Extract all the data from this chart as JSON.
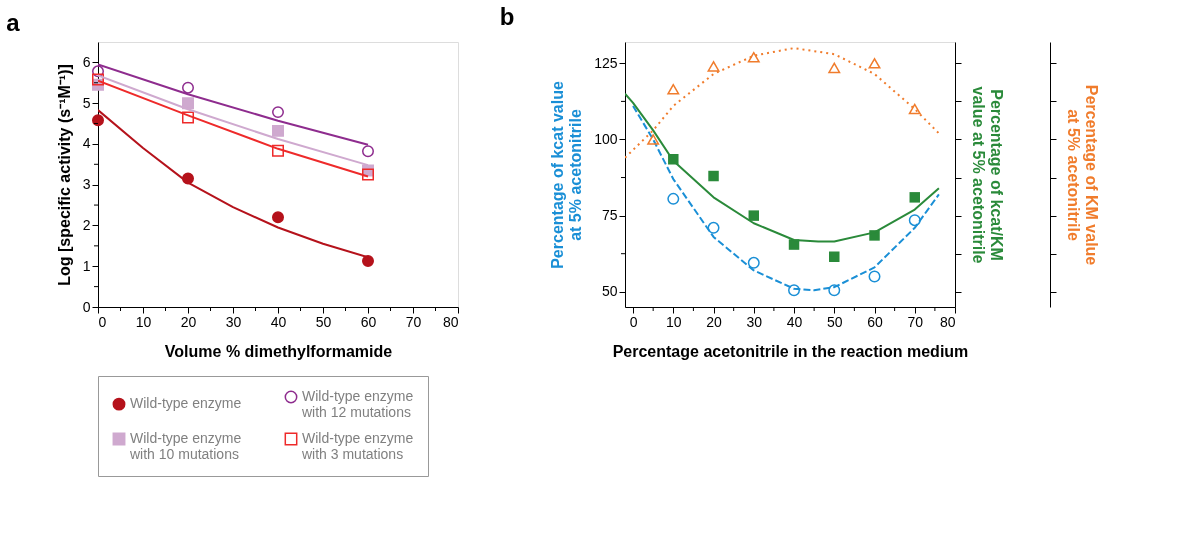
{
  "chart_data": [
    {
      "type": "scatter",
      "title": "a",
      "xlabel": "Volume % dimethylformamide",
      "ylabel": "Log [specific activity (s⁻¹M⁻¹)]",
      "xlim": [
        0,
        80
      ],
      "xticks": [
        0,
        {
          "value": 5,
          "label": null
        },
        10,
        {
          "value": 15,
          "label": null
        },
        20,
        {
          "value": 25,
          "label": null
        },
        30,
        {
          "value": 35,
          "label": null
        },
        40,
        {
          "value": 45,
          "label": null
        },
        50,
        {
          "value": 55,
          "label": null
        },
        60,
        {
          "value": 65,
          "label": null
        },
        70,
        {
          "value": 75,
          "label": null
        },
        80
      ],
      "ylim": [
        0,
        6.5
      ],
      "yticks": [
        0,
        {
          "value": 0.5,
          "label": null
        },
        1,
        {
          "value": 1.5,
          "label": null
        },
        2,
        {
          "value": 2.5,
          "label": null
        },
        3,
        {
          "value": 3.5,
          "label": null
        },
        4,
        {
          "value": 4.5,
          "label": null
        },
        5,
        {
          "value": 5.5,
          "label": null
        },
        6
      ],
      "grid": false,
      "legend": "bottom",
      "series": [
        {
          "name": "Wild-type enzyme",
          "color": "#b5121b",
          "marker": "circle",
          "x": [
            0,
            20,
            40,
            60
          ],
          "values": [
            4.58,
            3.15,
            2.2,
            1.13
          ]
        },
        {
          "name": "Wild-type enzyme with 12 mutations",
          "color": "#8e2c8e",
          "marker": "circle-open",
          "x": [
            0,
            20,
            40,
            60
          ],
          "values": [
            5.78,
            5.38,
            4.78,
            3.82
          ]
        },
        {
          "name": "Wild-type enzyme with 10 mutations",
          "color": "#cfa9cf",
          "marker": "square",
          "x": [
            0,
            20,
            40,
            60
          ],
          "values": [
            5.45,
            5.0,
            4.32,
            3.35
          ]
        },
        {
          "name": "Wild-type enzyme with 3 mutations",
          "color": "#ee2a2a",
          "marker": "square-open",
          "x": [
            0,
            20,
            40,
            60
          ],
          "values": [
            5.58,
            4.65,
            3.83,
            3.25
          ]
        },
        {
          "type": "line",
          "color": "#b5121b",
          "x": [
            0,
            10,
            20,
            30,
            40,
            50,
            60
          ],
          "values": [
            4.83,
            3.9,
            3.05,
            2.45,
            1.95,
            1.55,
            1.22
          ]
        },
        {
          "type": "line",
          "color": "#8e2c8e",
          "x": [
            0,
            20,
            40,
            60
          ],
          "values": [
            5.95,
            5.22,
            4.57,
            3.98
          ]
        },
        {
          "type": "line",
          "color": "#cfa9cf",
          "x": [
            0,
            20,
            40,
            60
          ],
          "values": [
            5.68,
            4.85,
            4.12,
            3.48
          ]
        },
        {
          "type": "line",
          "color": "#ee2a2a",
          "x": [
            0,
            20,
            40,
            60
          ],
          "values": [
            5.55,
            4.7,
            3.88,
            3.2
          ]
        }
      ]
    },
    {
      "type": "scatter",
      "title": "b",
      "xlabel": "Percentage acetonitrile in the reaction medium",
      "ylabel": "Percentage of kcat value\nat 5% acetonitrile",
      "y2label": "Percentage of kcat/KM\nvalue at 5% acetonitrile",
      "y3label": "Percentage of KM value\nat 5% acetonitrile",
      "xlim": [
        -2,
        80
      ],
      "xticks": [
        0,
        {
          "value": 5,
          "label": null
        },
        10,
        {
          "value": 15,
          "label": null
        },
        20,
        {
          "value": 25,
          "label": null
        },
        30,
        {
          "value": 35,
          "label": null
        },
        40,
        {
          "value": 45,
          "label": null
        },
        50,
        {
          "value": 55,
          "label": null
        },
        60,
        {
          "value": 65,
          "label": null
        },
        70,
        {
          "value": 75,
          "label": null
        },
        80
      ],
      "ylim": [
        45,
        132
      ],
      "yticks": [
        50,
        {
          "value": 62.5,
          "label": null
        },
        75,
        {
          "value": 87.5,
          "label": null
        },
        100,
        {
          "value": 112.5,
          "label": null
        },
        125
      ],
      "tick_labels": "xy",
      "grid": false,
      "legend": false,
      "series": [
        {
          "color": "#1a8fd6",
          "marker": "circle-open",
          "x": [
            10,
            20,
            30,
            40,
            50,
            60,
            70
          ],
          "values": [
            80.5,
            71,
            59.5,
            50.5,
            50.5,
            55,
            73.5
          ]
        },
        {
          "type": "line",
          "line_style": "dashed",
          "color": "#1a8fd6",
          "x": [
            0,
            5,
            10,
            20,
            30,
            40,
            45,
            50,
            60,
            70,
            76
          ],
          "values": [
            111,
            100,
            87,
            68,
            57,
            51,
            50.5,
            51.5,
            58,
            71,
            82
          ]
        },
        {
          "color": "#2a8a3a",
          "marker": "square",
          "x": [
            10,
            20,
            30,
            40,
            50,
            60,
            70
          ],
          "values": [
            93.5,
            88,
            75,
            65.5,
            61.5,
            68.5,
            81
          ]
        },
        {
          "type": "line",
          "line_style": "solid",
          "color": "#2a8a3a",
          "x": [
            -2,
            0,
            5,
            10,
            20,
            30,
            40,
            46,
            50,
            60,
            70,
            76
          ],
          "values": [
            115,
            112,
            103,
            93,
            81,
            72.5,
            67,
            66.5,
            66.5,
            69.5,
            77,
            84
          ]
        },
        {
          "color": "#f07c2c",
          "marker": "triangle-open",
          "x": [
            5,
            10,
            20,
            30,
            50,
            60,
            70
          ],
          "values": [
            100,
            116.5,
            124,
            127,
            123.5,
            125,
            110
          ]
        },
        {
          "type": "line",
          "line_style": "dotted",
          "color": "#f07c2c",
          "x": [
            -2,
            5,
            10,
            20,
            30,
            40,
            50,
            60,
            70,
            76
          ],
          "values": [
            94,
            103,
            111,
            121.5,
            127.5,
            130,
            128,
            121.5,
            110,
            102
          ]
        }
      ]
    }
  ]
}
